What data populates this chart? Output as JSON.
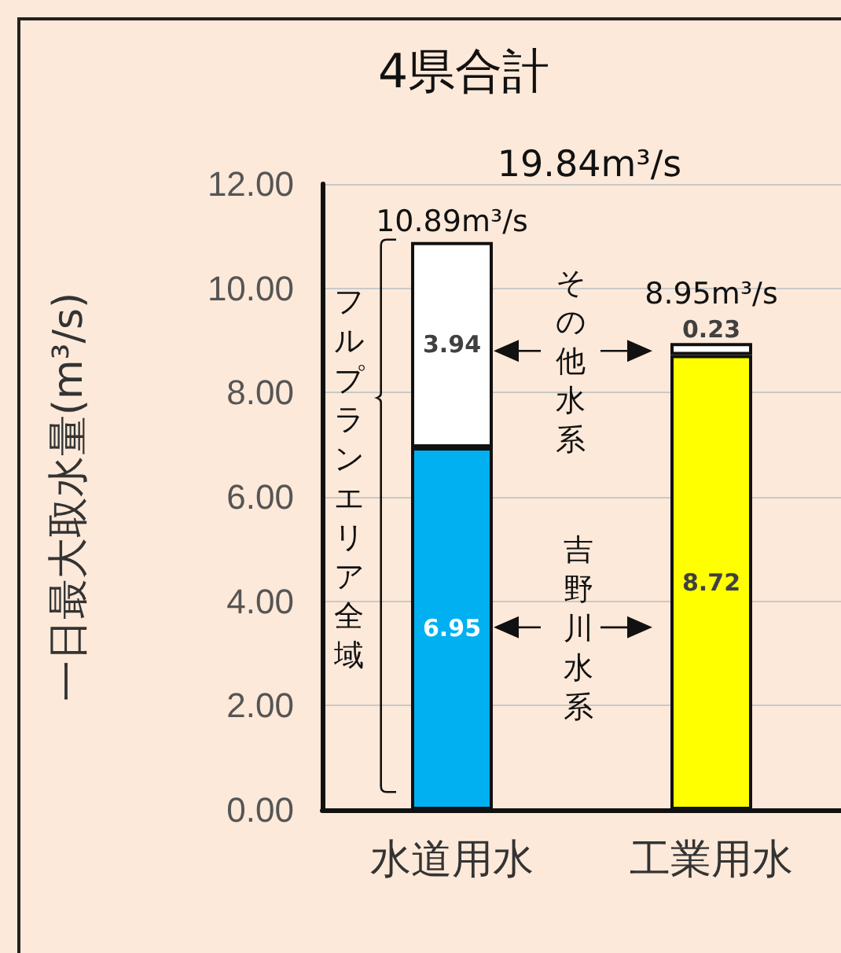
{
  "chart_data": {
    "type": "bar",
    "title": "4県合計",
    "ylabel": "一日最大取水量(m³/s)",
    "categories": [
      "水道用水",
      "工業用水"
    ],
    "series": [
      {
        "colors": [
          "#00b0f0",
          "#ffff00"
        ],
        "values": [
          6.95,
          8.72
        ]
      },
      {
        "colors": [
          "#ffffff",
          "#ffffff"
        ],
        "values": [
          3.94,
          0.23
        ]
      }
    ],
    "stacked": true,
    "data_labels": true,
    "totals": [
      "10.89m³/s",
      "8.95m³/s"
    ],
    "ylim": [
      0,
      12
    ],
    "yticks": [
      {
        "value": 0,
        "label": "0.00"
      },
      {
        "value": 2,
        "label": "2.00"
      },
      {
        "value": 4,
        "label": "4.00"
      },
      {
        "value": 6,
        "label": "6.00"
      },
      {
        "value": 8,
        "label": "8.00"
      },
      {
        "value": 10,
        "label": "10.00"
      },
      {
        "value": 12,
        "label": "12.00"
      }
    ],
    "grid": "y",
    "annotations": [
      "19.84m³/s",
      "フルプランエリア全域",
      "その他水系",
      "吉野川水系"
    ]
  }
}
